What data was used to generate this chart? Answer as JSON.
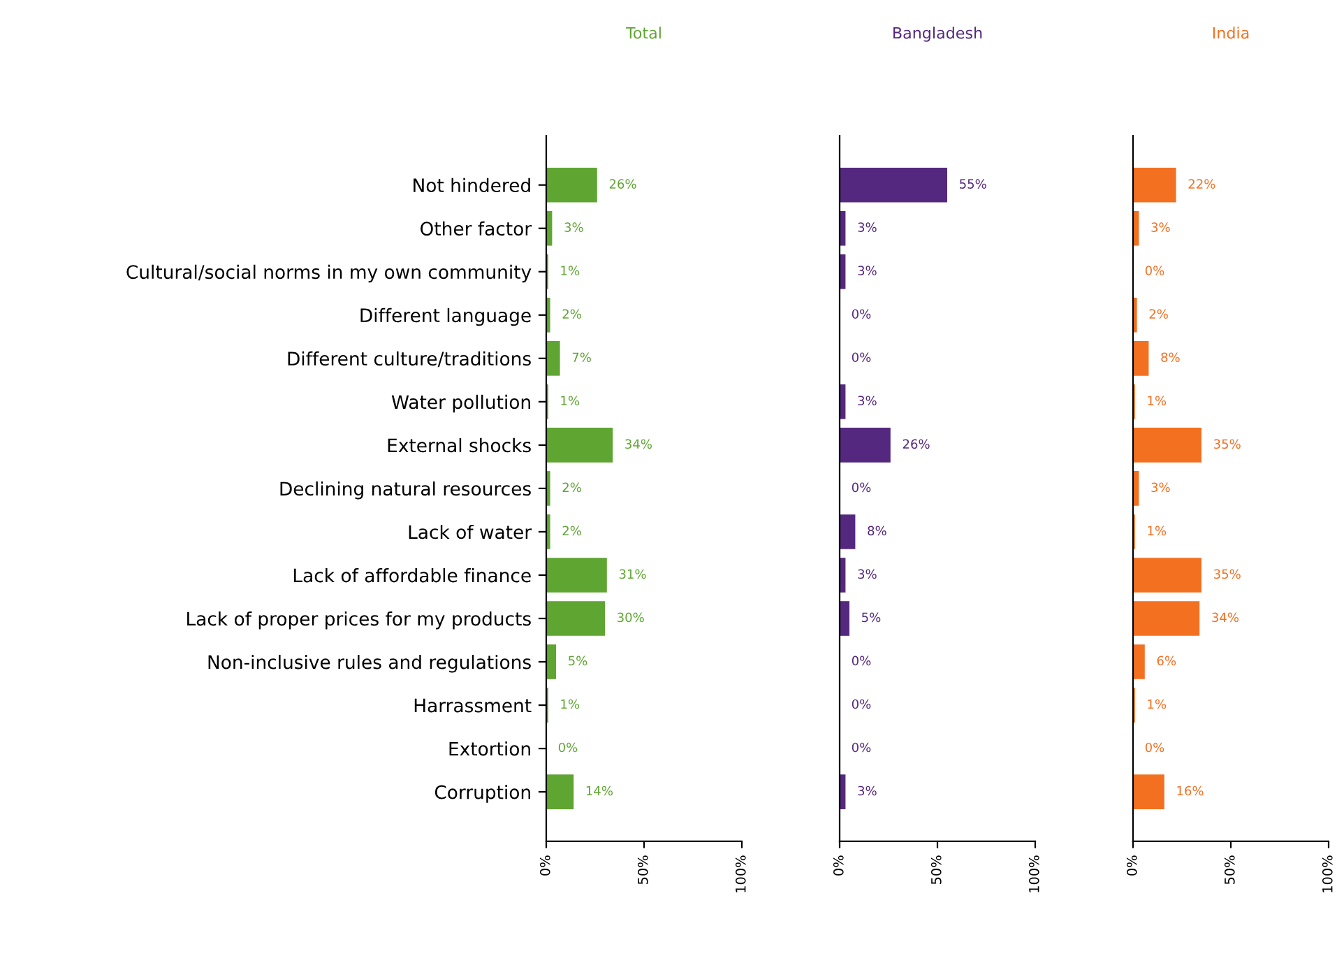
{
  "chart_data": [
    {
      "type": "bar",
      "orientation": "horizontal",
      "title": "Total",
      "categories": [
        "Not hindered",
        "Other factor",
        "Cultural/social norms in my own community",
        "Different language",
        "Different culture/traditions",
        "Water pollution",
        "External shocks",
        "Declining natural resources",
        "Lack of water",
        "Lack of affordable finance",
        "Lack of proper prices for my products",
        "Non-inclusive rules and regulations",
        "Harrassment",
        "Extortion",
        "Corruption"
      ],
      "values": [
        26,
        3,
        1,
        2,
        7,
        1,
        34,
        2,
        2,
        31,
        30,
        5,
        1,
        0,
        14
      ],
      "color": "#5fa532",
      "data_labels": true,
      "value_labels": [
        "26%",
        "3%",
        "1%",
        "2%",
        "7%",
        "1%",
        "34%",
        "2%",
        "2%",
        "31%",
        "30%",
        "5%",
        "1%",
        "0%",
        "14%"
      ],
      "xlim": [
        0,
        100
      ],
      "xticks": [
        {
          "value": 0,
          "label": "0%"
        },
        {
          "value": 50,
          "label": "50%"
        },
        {
          "value": 100,
          "label": "100%"
        }
      ],
      "grid": false,
      "legend": false
    },
    {
      "type": "bar",
      "orientation": "horizontal",
      "title": "Bangladesh",
      "categories": [
        null,
        null,
        null,
        null,
        null,
        null,
        null,
        null,
        null,
        null,
        null,
        null,
        null,
        null,
        null
      ],
      "values": [
        55,
        3,
        3,
        0,
        0,
        3,
        26,
        0,
        8,
        3,
        5,
        0,
        0,
        0,
        3
      ],
      "color": "#55287f",
      "data_labels": true,
      "value_labels": [
        "55%",
        "3%",
        "3%",
        "0%",
        "0%",
        "3%",
        "26%",
        "0%",
        "8%",
        "3%",
        "5%",
        "0%",
        "0%",
        "0%",
        "3%"
      ],
      "xlim": [
        0,
        100
      ],
      "xticks": [
        {
          "value": 0,
          "label": "0%"
        },
        {
          "value": 50,
          "label": "50%"
        },
        {
          "value": 100,
          "label": "100%"
        }
      ],
      "grid": false,
      "legend": false,
      "tick_labels": "x"
    },
    {
      "type": "bar",
      "orientation": "horizontal",
      "title": "India",
      "categories": [
        null,
        null,
        null,
        null,
        null,
        null,
        null,
        null,
        null,
        null,
        null,
        null,
        null,
        null,
        null
      ],
      "values": [
        22,
        3,
        0,
        2,
        8,
        1,
        35,
        3,
        1,
        35,
        34,
        6,
        1,
        0,
        16
      ],
      "color": "#f37021",
      "data_labels": true,
      "value_labels": [
        "22%",
        "3%",
        "0%",
        "2%",
        "8%",
        "1%",
        "35%",
        "3%",
        "1%",
        "35%",
        "34%",
        "6%",
        "1%",
        "0%",
        "16%"
      ],
      "xlim": [
        0,
        100
      ],
      "xticks": [
        {
          "value": 0,
          "label": "0%"
        },
        {
          "value": 50,
          "label": "50%"
        },
        {
          "value": 100,
          "label": "100%"
        }
      ],
      "grid": false,
      "legend": false,
      "tick_labels": "x"
    }
  ]
}
